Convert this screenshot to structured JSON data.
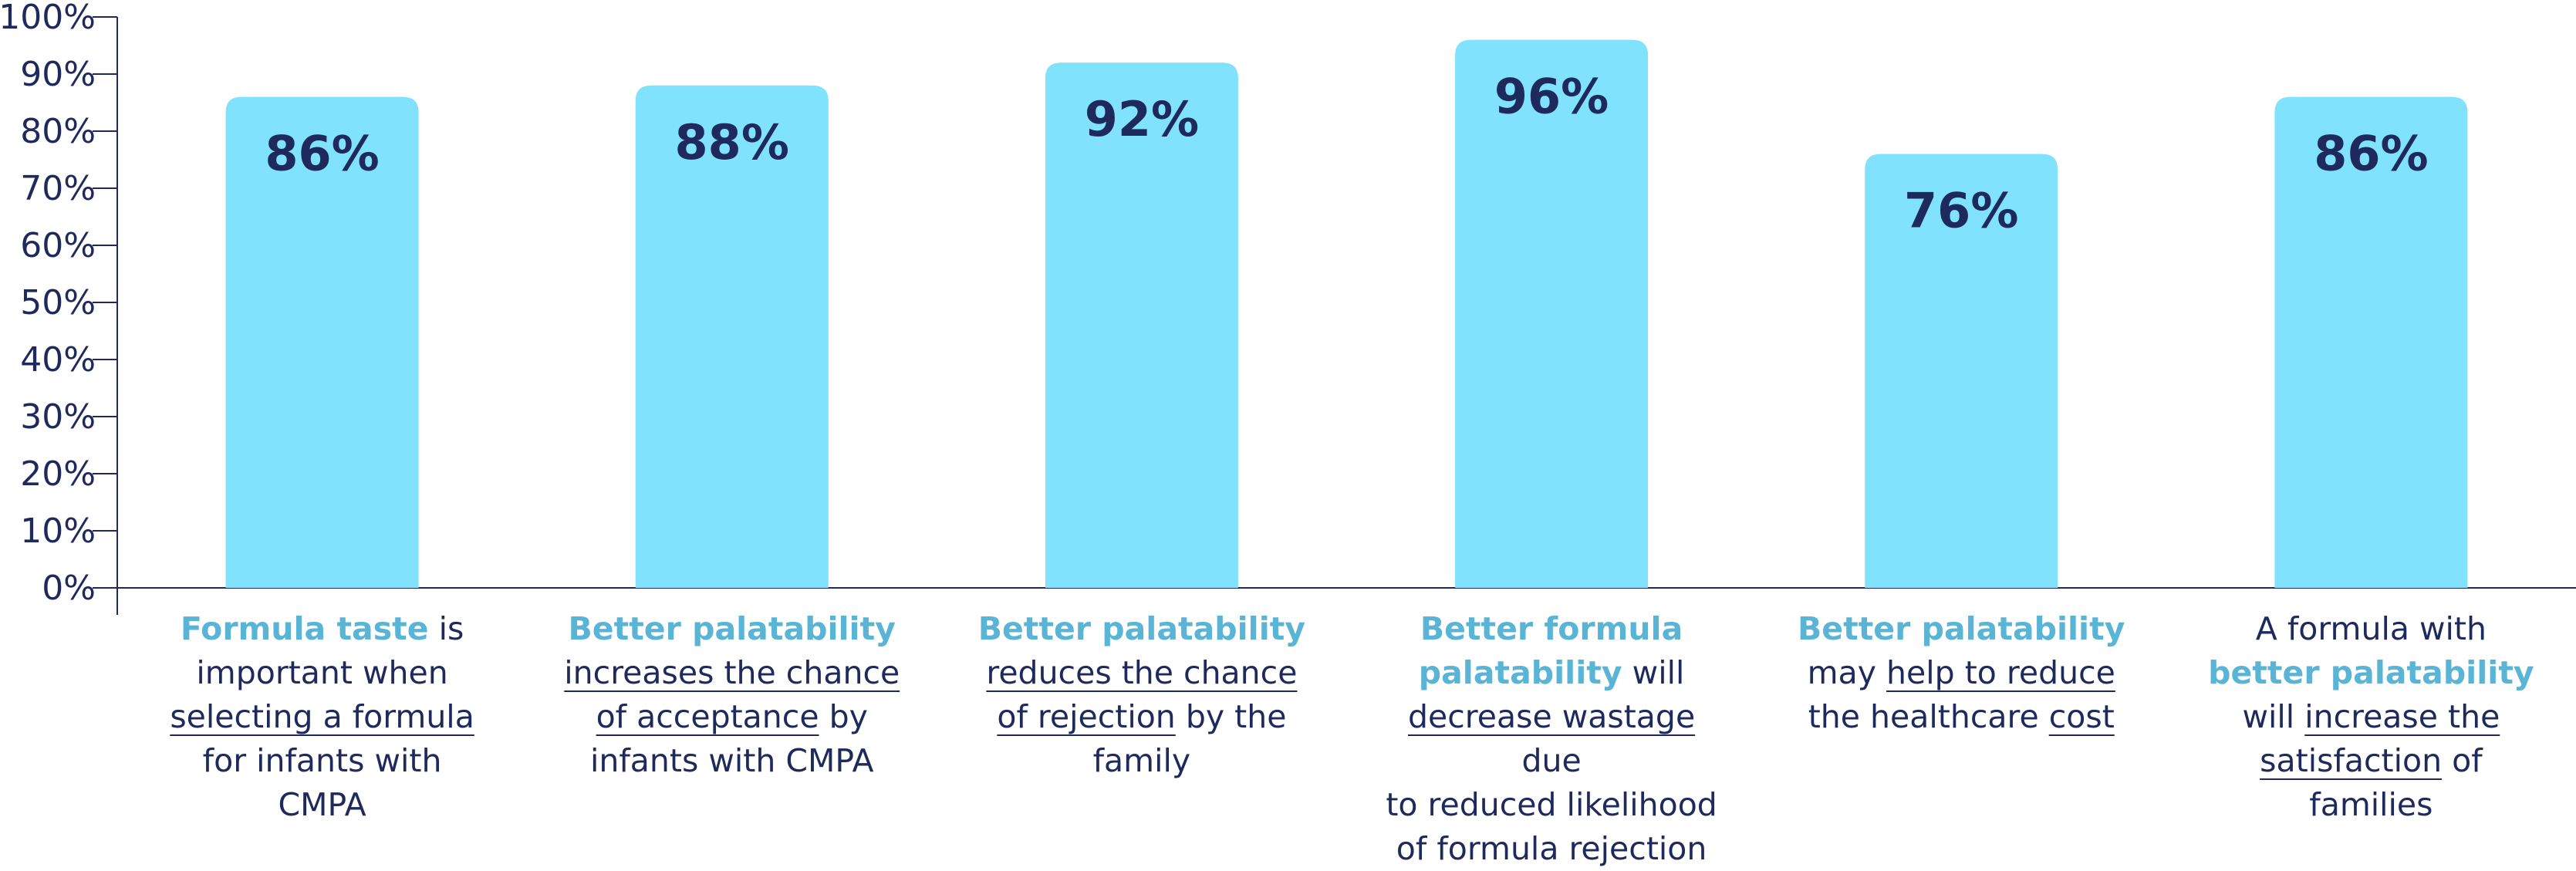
{
  "colors": {
    "bar": "#80e2fc",
    "text": "#1f2a5c",
    "highlight": "#5ab4d6",
    "axis": "#1f2a5c"
  },
  "chart_data": {
    "type": "bar",
    "ylim": [
      0,
      100
    ],
    "y_ticks": [
      "0%",
      "10%",
      "20%",
      "30%",
      "40%",
      "50%",
      "60%",
      "70%",
      "80%",
      "90%",
      "100%"
    ],
    "values": [
      86,
      88,
      92,
      96,
      76,
      86
    ],
    "value_labels": [
      "86%",
      "88%",
      "92%",
      "96%",
      "76%",
      "86%"
    ],
    "categories": [
      [
        [
          {
            "t": "Formula taste",
            "s": "hl"
          },
          {
            "t": " is"
          }
        ],
        [
          {
            "t": "important when"
          }
        ],
        [
          {
            "t": "selecting a formula",
            "s": "ul"
          }
        ],
        [
          {
            "t": "for infants with"
          }
        ],
        [
          {
            "t": "CMPA"
          }
        ]
      ],
      [
        [
          {
            "t": "Better palatability",
            "s": "hl"
          }
        ],
        [
          {
            "t": "increases the chance",
            "s": "ul"
          }
        ],
        [
          {
            "t": "of acceptance",
            "s": "ul"
          },
          {
            "t": " by"
          }
        ],
        [
          {
            "t": "infants with CMPA"
          }
        ]
      ],
      [
        [
          {
            "t": "Better palatability",
            "s": "hl"
          }
        ],
        [
          {
            "t": "reduces the chance",
            "s": "ul"
          }
        ],
        [
          {
            "t": "of rejection",
            "s": "ul"
          },
          {
            "t": " by the"
          }
        ],
        [
          {
            "t": "family"
          }
        ]
      ],
      [
        [
          {
            "t": "Better formula",
            "s": "hl"
          }
        ],
        [
          {
            "t": "palatability",
            "s": "hl"
          },
          {
            "t": " will"
          }
        ],
        [
          {
            "t": "decrease wastage",
            "s": "ul"
          },
          {
            "t": " due"
          }
        ],
        [
          {
            "t": "to reduced likelihood"
          }
        ],
        [
          {
            "t": "of formula rejection"
          }
        ]
      ],
      [
        [
          {
            "t": "Better palatability",
            "s": "hl"
          }
        ],
        [
          {
            "t": "may "
          },
          {
            "t": "help to reduce",
            "s": "ul"
          }
        ],
        [
          {
            "t": "the healthcare "
          },
          {
            "t": "cost",
            "s": "ul"
          }
        ]
      ],
      [
        [
          {
            "t": "A formula with"
          }
        ],
        [
          {
            "t": "better palatability",
            "s": "hl"
          }
        ],
        [
          {
            "t": "will "
          },
          {
            "t": "increase the",
            "s": "ul"
          }
        ],
        [
          {
            "t": "satisfaction",
            "s": "ul"
          },
          {
            "t": " of"
          }
        ],
        [
          {
            "t": "families"
          }
        ]
      ]
    ]
  }
}
